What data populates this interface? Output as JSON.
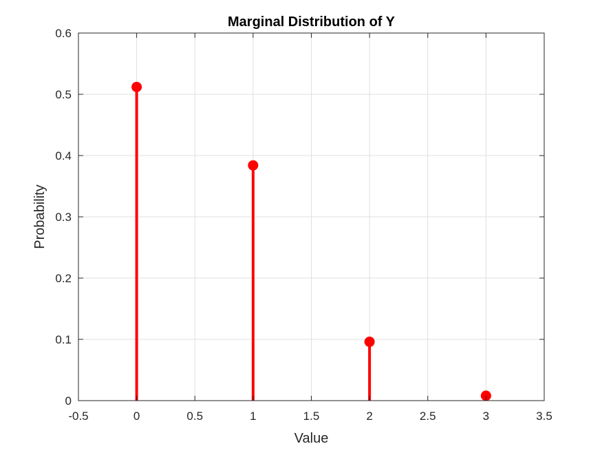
{
  "chart_data": {
    "type": "stem",
    "title": "Marginal Distribution of Y",
    "xlabel": "Value",
    "ylabel": "Probability",
    "x": [
      0,
      1,
      2,
      3
    ],
    "values": [
      0.512,
      0.384,
      0.096,
      0.008
    ],
    "xlim": [
      -0.5,
      3.5
    ],
    "ylim": [
      0,
      0.6
    ],
    "xticks": [
      -0.5,
      0,
      0.5,
      1,
      1.5,
      2,
      2.5,
      3,
      3.5
    ],
    "xtick_labels": [
      "-0.5",
      "0",
      "0.5",
      "1",
      "1.5",
      "2",
      "2.5",
      "3",
      "3.5"
    ],
    "yticks": [
      0,
      0.1,
      0.2,
      0.3,
      0.4,
      0.5,
      0.6
    ],
    "ytick_labels": [
      "0",
      "0.1",
      "0.2",
      "0.3",
      "0.4",
      "0.5",
      "0.6"
    ],
    "grid": true,
    "legend": "none",
    "colors": {
      "stem": "#ff0000",
      "marker": "#ff0000",
      "grid": "#dfdfdf",
      "axes": "#262626"
    }
  }
}
